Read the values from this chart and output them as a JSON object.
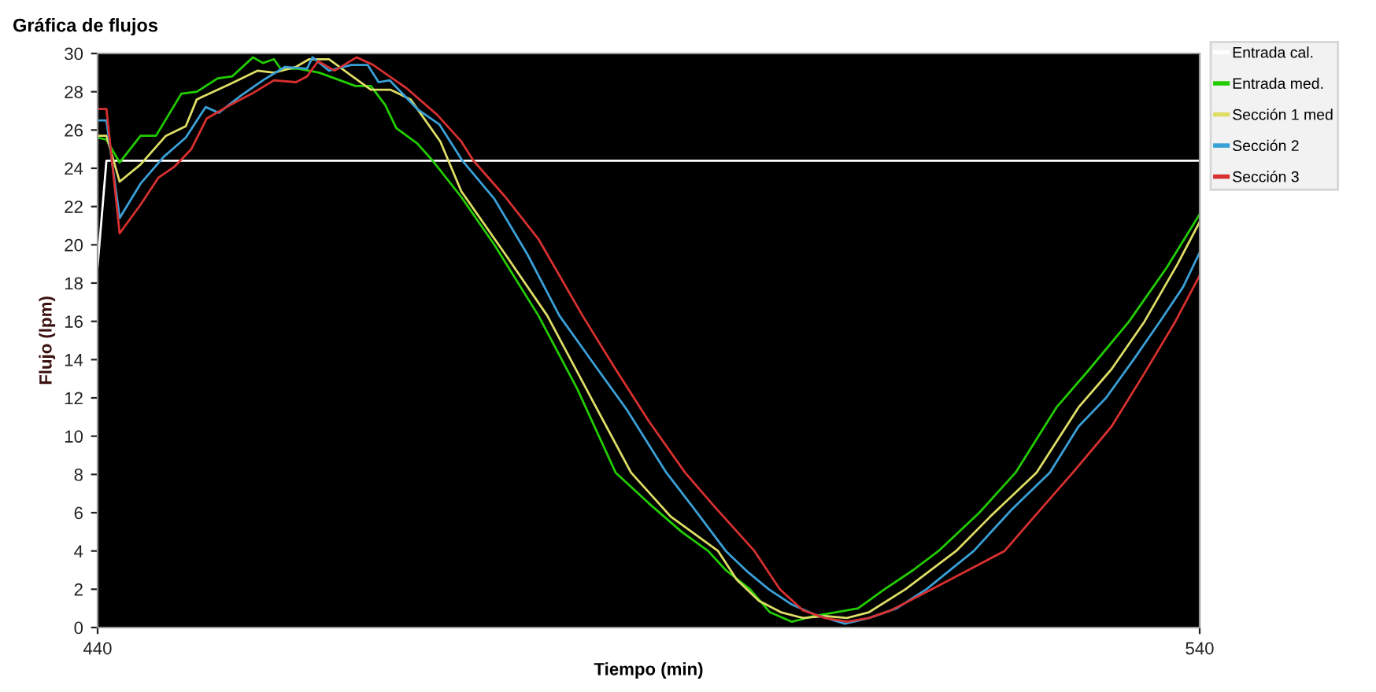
{
  "chart_data": {
    "type": "line",
    "title": "Gráfica de flujos",
    "xlabel": "Tiempo (min)",
    "ylabel": "Flujo (lpm)",
    "xlim": [
      440,
      540
    ],
    "xticks": [
      440,
      540
    ],
    "ylim": [
      0,
      30
    ],
    "yticks": [
      0,
      2,
      4,
      6,
      8,
      10,
      12,
      14,
      16,
      18,
      20,
      22,
      24,
      26,
      28,
      30
    ],
    "grid": false,
    "legend": "right",
    "marker": "none",
    "line_style": "solid",
    "series": [
      {
        "name": "Entrada cal.",
        "color": "#ffffff",
        "x": [
          440,
          440.8,
          540
        ],
        "values": [
          18.9,
          24.4,
          24.4
        ]
      },
      {
        "name": "Entrada med.",
        "color": "#22cc00",
        "x": [
          440,
          440.8,
          442,
          443.9,
          445.3,
          447.6,
          449,
          450.9,
          452.2,
          454.1,
          455,
          456,
          456.6,
          458.2,
          460.1,
          463.4,
          464.8,
          466.1,
          467.1,
          469,
          470.4,
          473,
          476,
          480,
          483.5,
          487,
          490,
          493,
          495.4,
          497,
          499.2,
          501,
          503,
          505,
          507,
          509,
          511.4,
          514,
          516.3,
          520,
          523.3,
          527,
          530,
          533.6,
          537,
          540
        ],
        "values": [
          25.6,
          25.5,
          24.3,
          25.7,
          25.7,
          27.9,
          28.0,
          28.7,
          28.8,
          29.8,
          29.5,
          29.7,
          29.2,
          29.2,
          29.0,
          28.3,
          28.3,
          27.3,
          26.1,
          25.3,
          24.4,
          22.5,
          20.0,
          16.3,
          12.5,
          8.1,
          6.5,
          5.0,
          4.0,
          3.0,
          2.0,
          0.8,
          0.3,
          0.6,
          0.8,
          1.0,
          2.0,
          3.0,
          4.0,
          6.0,
          8.1,
          11.5,
          13.5,
          16.0,
          18.8,
          21.6
        ]
      },
      {
        "name": "Sección 1 med",
        "color": "#dede66",
        "x": [
          440,
          440.8,
          442,
          443.9,
          446.2,
          448,
          449,
          452,
          454.5,
          456,
          458,
          459.2,
          461,
          462.9,
          464.8,
          466.6,
          468.4,
          471.1,
          473,
          477,
          480.8,
          484.5,
          488.4,
          492,
          496.3,
          498,
          500,
          502,
          504,
          506,
          508,
          510,
          513.3,
          517.9,
          521,
          525.2,
          529,
          532,
          535,
          538,
          540
        ],
        "values": [
          25.7,
          25.7,
          23.3,
          24.2,
          25.7,
          26.2,
          27.6,
          28.4,
          29.1,
          29.0,
          29.3,
          29.7,
          29.7,
          28.9,
          28.1,
          28.1,
          27.6,
          25.4,
          22.8,
          19.5,
          16.3,
          12.3,
          8.1,
          5.8,
          4.0,
          2.5,
          1.4,
          0.8,
          0.5,
          0.6,
          0.5,
          0.8,
          2.0,
          4.0,
          5.8,
          8.1,
          11.5,
          13.5,
          16.0,
          19.0,
          21.2
        ]
      },
      {
        "name": "Sección 2",
        "color": "#3aa0d8",
        "x": [
          440,
          440.8,
          442,
          443.9,
          446,
          448,
          449.8,
          451,
          453,
          455,
          457,
          459,
          459.5,
          461,
          463,
          464.5,
          465.5,
          466.5,
          469,
          471,
          473.1,
          476,
          479,
          481.9,
          485,
          488,
          491.6,
          494,
          497,
          499,
          500.9,
          503,
          505,
          507.8,
          510,
          512.5,
          515.2,
          519.5,
          523,
          526.4,
          529,
          531.5,
          534,
          536.4,
          538.5,
          540
        ],
        "values": [
          26.5,
          26.5,
          21.4,
          23.2,
          24.6,
          25.6,
          27.2,
          26.9,
          27.8,
          28.6,
          29.3,
          29.2,
          29.8,
          29.1,
          29.4,
          29.4,
          28.5,
          28.6,
          27.1,
          26.3,
          24.4,
          22.4,
          19.5,
          16.3,
          13.8,
          11.4,
          8.1,
          6.3,
          4.0,
          2.9,
          2.0,
          1.2,
          0.7,
          0.2,
          0.5,
          1.0,
          2.0,
          4.0,
          6.2,
          8.1,
          10.5,
          12.0,
          14.0,
          16.0,
          17.8,
          19.6
        ]
      },
      {
        "name": "Sección 3",
        "color": "#d83030",
        "x": [
          440,
          440.8,
          442,
          443.9,
          445.5,
          447,
          448.5,
          449.9,
          452,
          454,
          456,
          458,
          459,
          460,
          461.5,
          463.5,
          465,
          468,
          470.8,
          473,
          474.1,
          477,
          480,
          484,
          487,
          490,
          493.3,
          496,
          499.6,
          501.9,
          504,
          506,
          508,
          510,
          512,
          515.7,
          519,
          522.3,
          525,
          528.5,
          532,
          535,
          537.8,
          540
        ],
        "values": [
          27.1,
          27.1,
          20.6,
          22.1,
          23.5,
          24.1,
          25.0,
          26.6,
          27.3,
          27.9,
          28.6,
          28.5,
          28.8,
          29.6,
          29.1,
          29.8,
          29.4,
          28.2,
          26.8,
          25.4,
          24.4,
          22.5,
          20.3,
          16.3,
          13.5,
          10.8,
          8.1,
          6.3,
          4.0,
          2.0,
          0.9,
          0.5,
          0.3,
          0.5,
          0.9,
          2.0,
          3.0,
          4.0,
          5.8,
          8.1,
          10.5,
          13.3,
          16.0,
          18.4
        ]
      }
    ]
  }
}
